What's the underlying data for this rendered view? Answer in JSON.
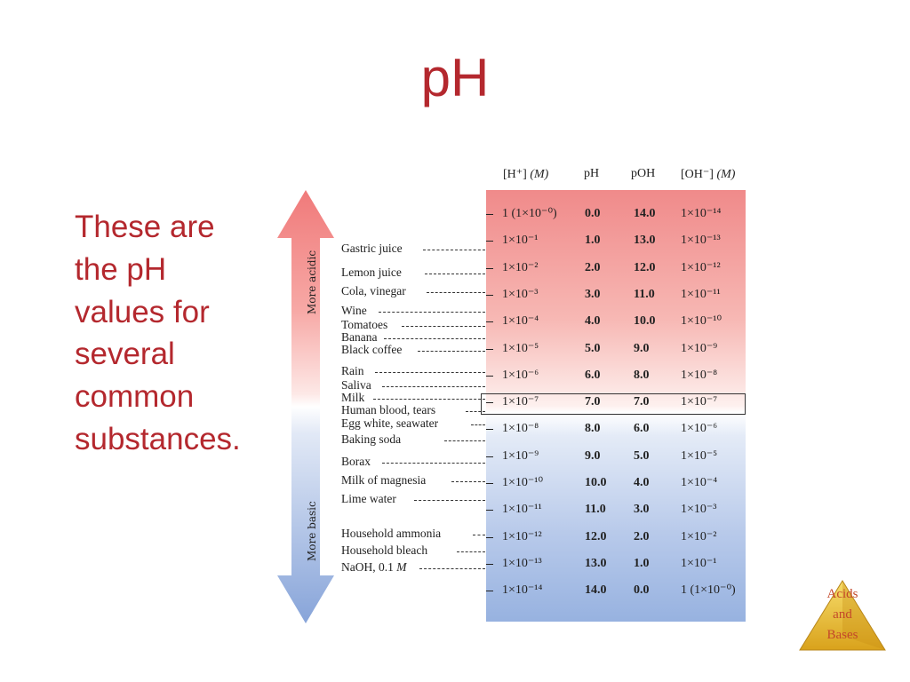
{
  "slide": {
    "title": "pH",
    "intro_lines": [
      "These are",
      "the pH",
      "values for",
      "several",
      "common",
      "substances."
    ]
  },
  "arrow": {
    "top_label": "More acidic",
    "bottom_label": "More basic",
    "colors": {
      "acidic": "#f28585",
      "basic": "#8eaadb"
    }
  },
  "table": {
    "headers": {
      "h": "[H⁺]",
      "h_unit": "(M)",
      "ph": "pH",
      "poh": "pOH",
      "oh": "[OH⁻]",
      "oh_unit": "(M)"
    },
    "rows": [
      {
        "h": "1 (1×10⁻⁰)",
        "ph": "0.0",
        "poh": "14.0",
        "oh": "1×10⁻¹⁴"
      },
      {
        "h": "1×10⁻¹",
        "ph": "1.0",
        "poh": "13.0",
        "oh": "1×10⁻¹³"
      },
      {
        "h": "1×10⁻²",
        "ph": "2.0",
        "poh": "12.0",
        "oh": "1×10⁻¹²"
      },
      {
        "h": "1×10⁻³",
        "ph": "3.0",
        "poh": "11.0",
        "oh": "1×10⁻¹¹"
      },
      {
        "h": "1×10⁻⁴",
        "ph": "4.0",
        "poh": "10.0",
        "oh": "1×10⁻¹⁰"
      },
      {
        "h": "1×10⁻⁵",
        "ph": "5.0",
        "poh": "9.0",
        "oh": "1×10⁻⁹"
      },
      {
        "h": "1×10⁻⁶",
        "ph": "6.0",
        "poh": "8.0",
        "oh": "1×10⁻⁸"
      },
      {
        "h": "1×10⁻⁷",
        "ph": "7.0",
        "poh": "7.0",
        "oh": "1×10⁻⁷"
      },
      {
        "h": "1×10⁻⁸",
        "ph": "8.0",
        "poh": "6.0",
        "oh": "1×10⁻⁶"
      },
      {
        "h": "1×10⁻⁹",
        "ph": "9.0",
        "poh": "5.0",
        "oh": "1×10⁻⁵"
      },
      {
        "h": "1×10⁻¹⁰",
        "ph": "10.0",
        "poh": "4.0",
        "oh": "1×10⁻⁴"
      },
      {
        "h": "1×10⁻¹¹",
        "ph": "11.0",
        "poh": "3.0",
        "oh": "1×10⁻³"
      },
      {
        "h": "1×10⁻¹²",
        "ph": "12.0",
        "poh": "2.0",
        "oh": "1×10⁻²"
      },
      {
        "h": "1×10⁻¹³",
        "ph": "13.0",
        "poh": "1.0",
        "oh": "1×10⁻¹"
      },
      {
        "h": "1×10⁻¹⁴",
        "ph": "14.0",
        "poh": "0.0",
        "oh": "1 (1×10⁻⁰)"
      }
    ]
  },
  "substances": [
    {
      "name": "Gastric juice"
    },
    {
      "name": "Lemon juice"
    },
    {
      "name": "Cola, vinegar"
    },
    {
      "name": "Wine"
    },
    {
      "name": "Tomatoes"
    },
    {
      "name": "Banana"
    },
    {
      "name": "Black coffee"
    },
    {
      "name": "Rain"
    },
    {
      "name": "Saliva"
    },
    {
      "name": "Milk"
    },
    {
      "name": "Human blood, tears"
    },
    {
      "name": "Egg white, seawater"
    },
    {
      "name": "Baking soda"
    },
    {
      "name": "Borax"
    },
    {
      "name": "Milk of magnesia"
    },
    {
      "name": "Lime water"
    },
    {
      "name": "Household ammonia"
    },
    {
      "name": "Household bleach"
    },
    {
      "name": "NaOH, 0.1 ",
      "suffix": "M"
    }
  ],
  "logo": {
    "lines": [
      "Acids",
      "and",
      "Bases"
    ],
    "color": "#e8b92a"
  }
}
